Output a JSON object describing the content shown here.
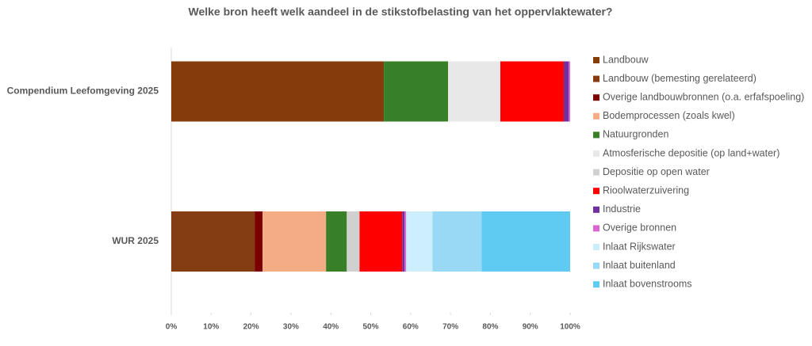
{
  "chart_data": {
    "type": "stacked_barh",
    "title": "Welke bron heeft welk aandeel in de stikstofbelasting van het oppervlaktewater?",
    "categories": [
      "Compendium Leefomgeving 2025",
      "WUR  2025"
    ],
    "series": [
      {
        "name": "Landbouw",
        "color": "#843c0c",
        "values": [
          53.3,
          0
        ]
      },
      {
        "name": "Landbouw (bemesting gerelateerd)",
        "color": "#843c12",
        "values": [
          0,
          20.9
        ]
      },
      {
        "name": "Overige landbouwbronnen (o.a. erfafspoeling)",
        "color": "#7b0000",
        "values": [
          0,
          2.0
        ]
      },
      {
        "name": "Bodemprocessen (zoals kwel)",
        "color": "#f4ac84",
        "values": [
          0,
          15.9
        ]
      },
      {
        "name": "Natuurgronden",
        "color": "#388028",
        "values": [
          16.1,
          5.2
        ]
      },
      {
        "name": "Atmosferische depositie (op land+water)",
        "color": "#e8e8e8",
        "values": [
          13.1,
          0
        ]
      },
      {
        "name": "Depositie op open water",
        "color": "#d0d0d0",
        "values": [
          0,
          3.2
        ]
      },
      {
        "name": "Rioolwaterzuivering",
        "color": "#ff0000",
        "values": [
          15.9,
          10.7
        ]
      },
      {
        "name": "Industrie",
        "color": "#7030a0",
        "values": [
          1.2,
          0.6
        ]
      },
      {
        "name": "Overige bronnen",
        "color": "#d966cc",
        "values": [
          0.4,
          0.4
        ]
      },
      {
        "name": "Inlaat Rijkswater",
        "color": "#cdeefc",
        "values": [
          0,
          6.6
        ]
      },
      {
        "name": "Inlaat buitenland",
        "color": "#99d9f5",
        "values": [
          0,
          12.3
        ]
      },
      {
        "name": "Inlaat bovenstrooms",
        "color": "#5fcbf3",
        "values": [
          0,
          22.2
        ]
      }
    ],
    "xlim": [
      0,
      100
    ],
    "xticks": [
      {
        "value": 0,
        "label": "0%"
      },
      {
        "value": 10,
        "label": "10%"
      },
      {
        "value": 20,
        "label": "20%"
      },
      {
        "value": 30,
        "label": "30%"
      },
      {
        "value": 40,
        "label": "40%"
      },
      {
        "value": 50,
        "label": "50%"
      },
      {
        "value": 60,
        "label": "60%"
      },
      {
        "value": 70,
        "label": "70%"
      },
      {
        "value": 80,
        "label": "80%"
      },
      {
        "value": 90,
        "label": "90%"
      },
      {
        "value": 100,
        "label": "100%"
      }
    ],
    "legend": "right"
  }
}
